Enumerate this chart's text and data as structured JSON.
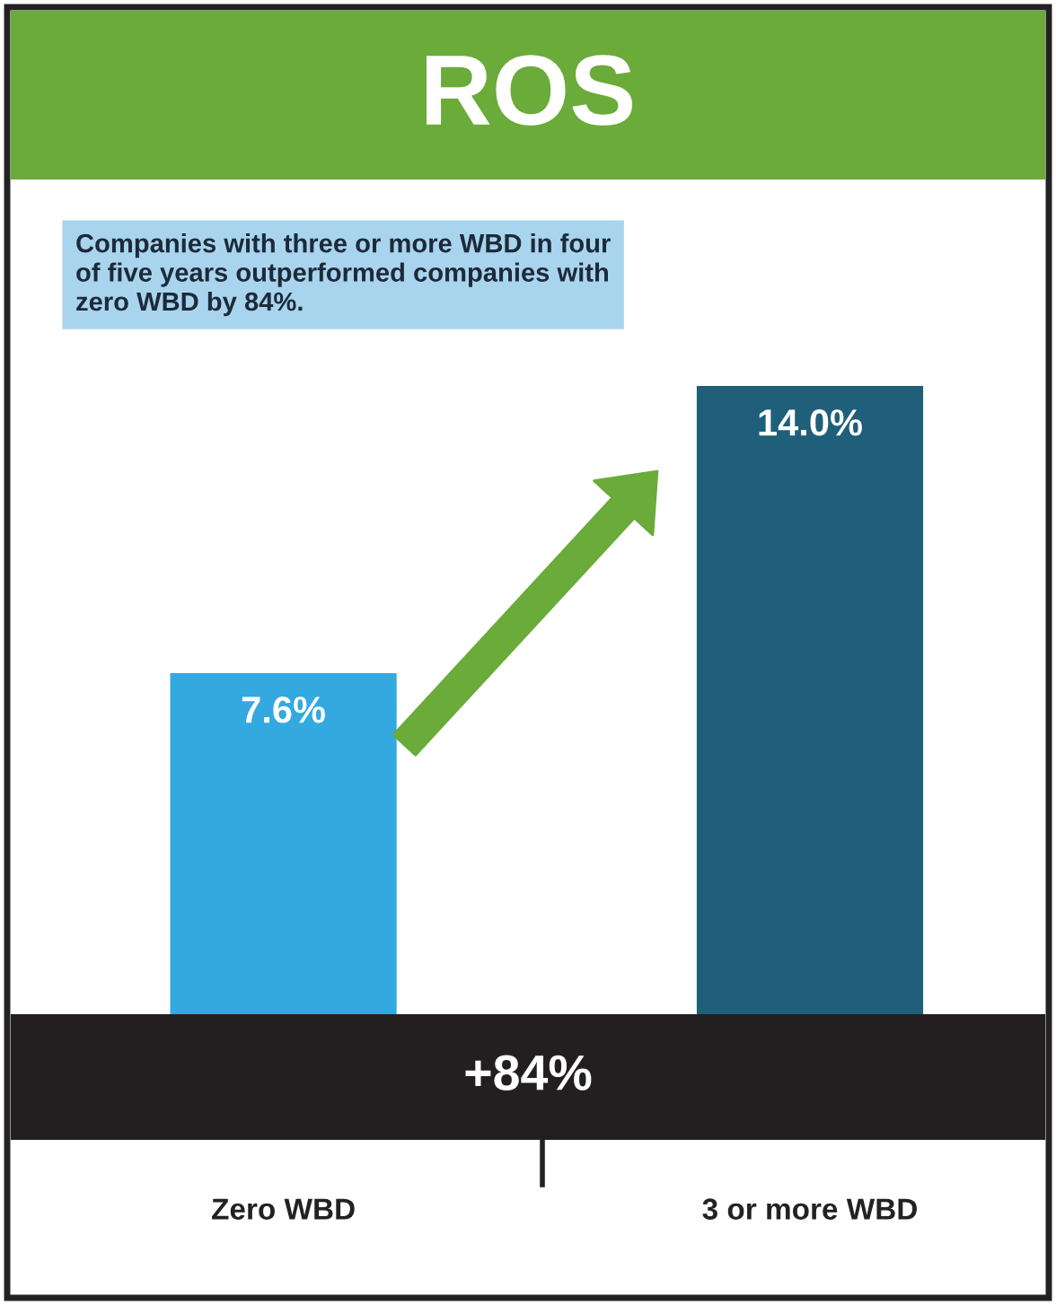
{
  "chart_data": {
    "type": "bar",
    "title": "ROS",
    "categories": [
      "Zero WBD",
      "3 or more WBD"
    ],
    "values": [
      7.6,
      14.0
    ],
    "colors": [
      "#33a9e0",
      "#1f5f7a"
    ],
    "value_labels": [
      "7.6%",
      "14.0%"
    ],
    "ylim": [
      0,
      17.8
    ],
    "annotations": [
      "Companies with three or more WBD in four of five years outperformed companies with zero WBD by 84%.",
      "+84%"
    ]
  }
}
